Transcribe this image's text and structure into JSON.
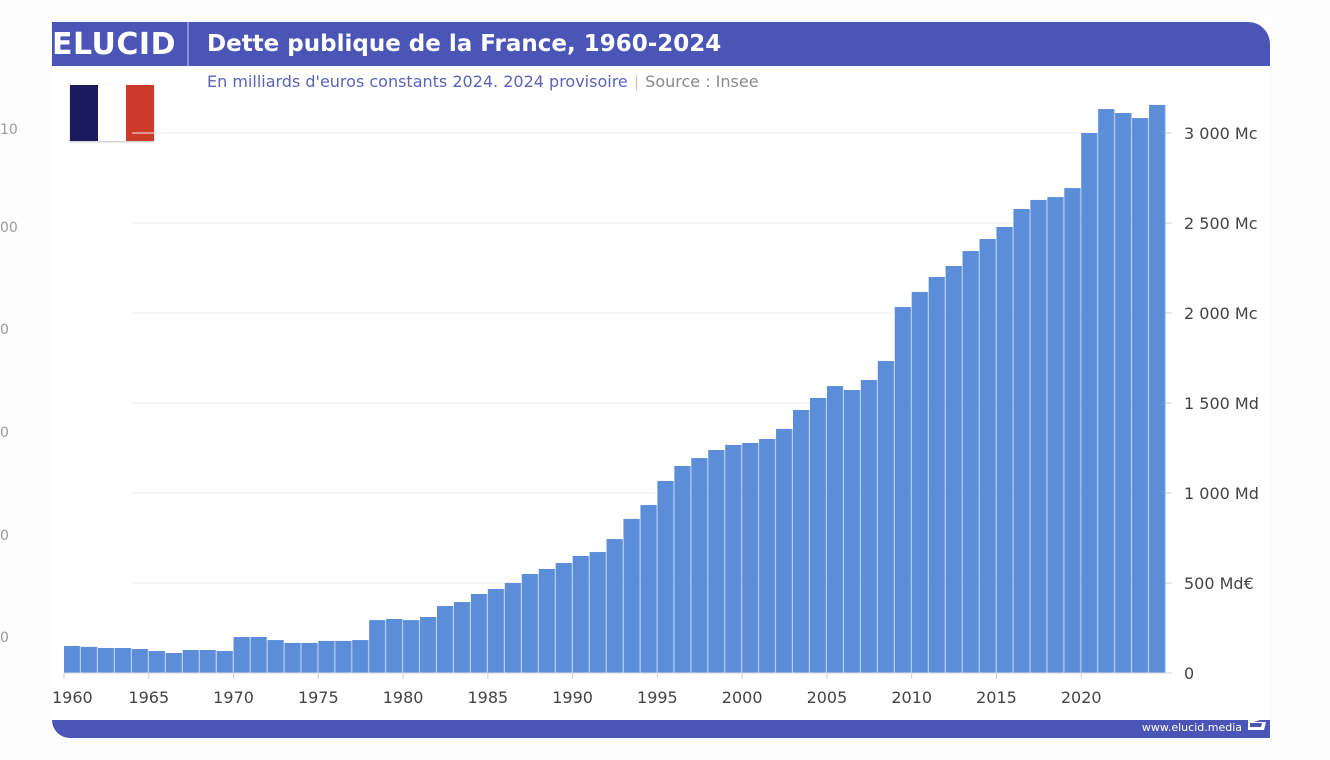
{
  "header": {
    "brand": "ELUCID",
    "title": "Dette publique de la France, 1960-2024",
    "subtitle": "En milliards d'euros constants 2024. 2024 provisoire",
    "separator": "|",
    "source": "Source : Insee"
  },
  "flag": {
    "name": "france-flag",
    "colors": [
      "#1b1a5e",
      "#ffffff",
      "#cc3a2a"
    ]
  },
  "footer": {
    "url": "www.elucid.media"
  },
  "ghost_axis_labels": [
    "10",
    "00",
    "0",
    "0",
    "0",
    "0"
  ],
  "colors": {
    "bar": "#5b8dd9",
    "bar_edge": "#7aa5e6",
    "header": "#4a55b7",
    "grid": "#ececec"
  },
  "chart_data": {
    "type": "bar",
    "title": "Dette publique de la France, 1960-2024",
    "subtitle": "En milliards d'euros constants 2024. 2024 provisoire | Source : Insee",
    "xlabel": "",
    "ylabel": "",
    "ylim": [
      0,
      3200
    ],
    "y_axis_position": "right",
    "grid": true,
    "yticks": [
      0,
      500,
      1000,
      1500,
      2000,
      2500,
      3000
    ],
    "ytick_labels": [
      "0",
      "500 Md€",
      "1 000 Md",
      "1 500 Md",
      "2 000 Mc",
      "2 500 Mc",
      "3 000 Mc"
    ],
    "xtick_labels": [
      "1960",
      "1965",
      "1970",
      "1975",
      "1980",
      "1985",
      "1990",
      "1995",
      "2000",
      "2005",
      "2010",
      "2015",
      "2020"
    ],
    "categories": [
      1960,
      1961,
      1962,
      1963,
      1964,
      1965,
      1966,
      1967,
      1968,
      1969,
      1970,
      1971,
      1972,
      1973,
      1974,
      1975,
      1976,
      1977,
      1978,
      1979,
      1980,
      1981,
      1982,
      1983,
      1984,
      1985,
      1986,
      1987,
      1988,
      1989,
      1990,
      1991,
      1992,
      1993,
      1994,
      1995,
      1996,
      1997,
      1998,
      1999,
      2000,
      2001,
      2002,
      2003,
      2004,
      2005,
      2006,
      2007,
      2008,
      2009,
      2010,
      2011,
      2012,
      2013,
      2014,
      2015,
      2016,
      2017,
      2018,
      2019,
      2020,
      2021,
      2022,
      2023,
      2024
    ],
    "values": [
      150,
      145,
      139,
      139,
      133,
      122,
      111,
      128,
      128,
      122,
      200,
      200,
      183,
      167,
      167,
      178,
      178,
      183,
      294,
      300,
      294,
      311,
      372,
      394,
      439,
      467,
      500,
      550,
      578,
      611,
      650,
      672,
      744,
      856,
      933,
      1067,
      1150,
      1194,
      1239,
      1267,
      1278,
      1300,
      1356,
      1461,
      1528,
      1594,
      1572,
      1628,
      1733,
      2033,
      2117,
      2200,
      2261,
      2344,
      2411,
      2478,
      2578,
      2628,
      2644,
      2694,
      3000,
      3133,
      3111,
      3083,
      3156
    ]
  }
}
